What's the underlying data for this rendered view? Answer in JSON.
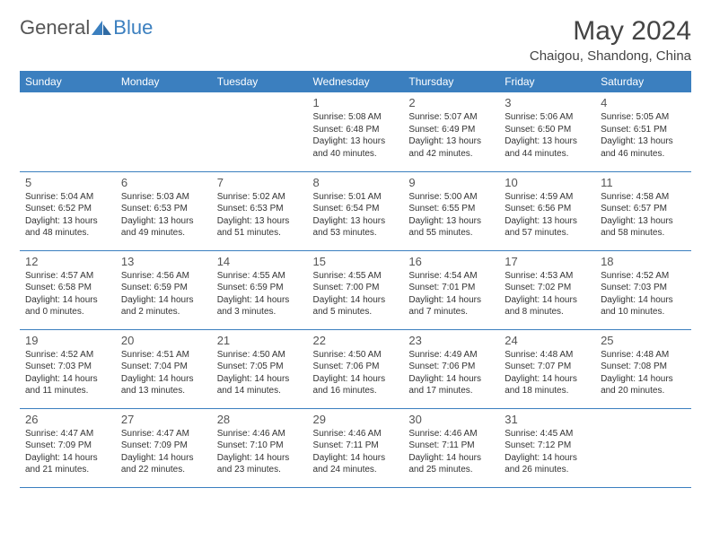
{
  "logo": {
    "text1": "General",
    "text2": "Blue"
  },
  "title": "May 2024",
  "location": "Chaigou, Shandong, China",
  "colors": {
    "header_bg": "#3b7fbf",
    "header_fg": "#ffffff",
    "border": "#3b7fbf",
    "text": "#333333"
  },
  "weekdays": [
    "Sunday",
    "Monday",
    "Tuesday",
    "Wednesday",
    "Thursday",
    "Friday",
    "Saturday"
  ],
  "weeks": [
    [
      {
        "n": "",
        "sr": "",
        "ss": "",
        "dl": ""
      },
      {
        "n": "",
        "sr": "",
        "ss": "",
        "dl": ""
      },
      {
        "n": "",
        "sr": "",
        "ss": "",
        "dl": ""
      },
      {
        "n": "1",
        "sr": "Sunrise: 5:08 AM",
        "ss": "Sunset: 6:48 PM",
        "dl": "Daylight: 13 hours and 40 minutes."
      },
      {
        "n": "2",
        "sr": "Sunrise: 5:07 AM",
        "ss": "Sunset: 6:49 PM",
        "dl": "Daylight: 13 hours and 42 minutes."
      },
      {
        "n": "3",
        "sr": "Sunrise: 5:06 AM",
        "ss": "Sunset: 6:50 PM",
        "dl": "Daylight: 13 hours and 44 minutes."
      },
      {
        "n": "4",
        "sr": "Sunrise: 5:05 AM",
        "ss": "Sunset: 6:51 PM",
        "dl": "Daylight: 13 hours and 46 minutes."
      }
    ],
    [
      {
        "n": "5",
        "sr": "Sunrise: 5:04 AM",
        "ss": "Sunset: 6:52 PM",
        "dl": "Daylight: 13 hours and 48 minutes."
      },
      {
        "n": "6",
        "sr": "Sunrise: 5:03 AM",
        "ss": "Sunset: 6:53 PM",
        "dl": "Daylight: 13 hours and 49 minutes."
      },
      {
        "n": "7",
        "sr": "Sunrise: 5:02 AM",
        "ss": "Sunset: 6:53 PM",
        "dl": "Daylight: 13 hours and 51 minutes."
      },
      {
        "n": "8",
        "sr": "Sunrise: 5:01 AM",
        "ss": "Sunset: 6:54 PM",
        "dl": "Daylight: 13 hours and 53 minutes."
      },
      {
        "n": "9",
        "sr": "Sunrise: 5:00 AM",
        "ss": "Sunset: 6:55 PM",
        "dl": "Daylight: 13 hours and 55 minutes."
      },
      {
        "n": "10",
        "sr": "Sunrise: 4:59 AM",
        "ss": "Sunset: 6:56 PM",
        "dl": "Daylight: 13 hours and 57 minutes."
      },
      {
        "n": "11",
        "sr": "Sunrise: 4:58 AM",
        "ss": "Sunset: 6:57 PM",
        "dl": "Daylight: 13 hours and 58 minutes."
      }
    ],
    [
      {
        "n": "12",
        "sr": "Sunrise: 4:57 AM",
        "ss": "Sunset: 6:58 PM",
        "dl": "Daylight: 14 hours and 0 minutes."
      },
      {
        "n": "13",
        "sr": "Sunrise: 4:56 AM",
        "ss": "Sunset: 6:59 PM",
        "dl": "Daylight: 14 hours and 2 minutes."
      },
      {
        "n": "14",
        "sr": "Sunrise: 4:55 AM",
        "ss": "Sunset: 6:59 PM",
        "dl": "Daylight: 14 hours and 3 minutes."
      },
      {
        "n": "15",
        "sr": "Sunrise: 4:55 AM",
        "ss": "Sunset: 7:00 PM",
        "dl": "Daylight: 14 hours and 5 minutes."
      },
      {
        "n": "16",
        "sr": "Sunrise: 4:54 AM",
        "ss": "Sunset: 7:01 PM",
        "dl": "Daylight: 14 hours and 7 minutes."
      },
      {
        "n": "17",
        "sr": "Sunrise: 4:53 AM",
        "ss": "Sunset: 7:02 PM",
        "dl": "Daylight: 14 hours and 8 minutes."
      },
      {
        "n": "18",
        "sr": "Sunrise: 4:52 AM",
        "ss": "Sunset: 7:03 PM",
        "dl": "Daylight: 14 hours and 10 minutes."
      }
    ],
    [
      {
        "n": "19",
        "sr": "Sunrise: 4:52 AM",
        "ss": "Sunset: 7:03 PM",
        "dl": "Daylight: 14 hours and 11 minutes."
      },
      {
        "n": "20",
        "sr": "Sunrise: 4:51 AM",
        "ss": "Sunset: 7:04 PM",
        "dl": "Daylight: 14 hours and 13 minutes."
      },
      {
        "n": "21",
        "sr": "Sunrise: 4:50 AM",
        "ss": "Sunset: 7:05 PM",
        "dl": "Daylight: 14 hours and 14 minutes."
      },
      {
        "n": "22",
        "sr": "Sunrise: 4:50 AM",
        "ss": "Sunset: 7:06 PM",
        "dl": "Daylight: 14 hours and 16 minutes."
      },
      {
        "n": "23",
        "sr": "Sunrise: 4:49 AM",
        "ss": "Sunset: 7:06 PM",
        "dl": "Daylight: 14 hours and 17 minutes."
      },
      {
        "n": "24",
        "sr": "Sunrise: 4:48 AM",
        "ss": "Sunset: 7:07 PM",
        "dl": "Daylight: 14 hours and 18 minutes."
      },
      {
        "n": "25",
        "sr": "Sunrise: 4:48 AM",
        "ss": "Sunset: 7:08 PM",
        "dl": "Daylight: 14 hours and 20 minutes."
      }
    ],
    [
      {
        "n": "26",
        "sr": "Sunrise: 4:47 AM",
        "ss": "Sunset: 7:09 PM",
        "dl": "Daylight: 14 hours and 21 minutes."
      },
      {
        "n": "27",
        "sr": "Sunrise: 4:47 AM",
        "ss": "Sunset: 7:09 PM",
        "dl": "Daylight: 14 hours and 22 minutes."
      },
      {
        "n": "28",
        "sr": "Sunrise: 4:46 AM",
        "ss": "Sunset: 7:10 PM",
        "dl": "Daylight: 14 hours and 23 minutes."
      },
      {
        "n": "29",
        "sr": "Sunrise: 4:46 AM",
        "ss": "Sunset: 7:11 PM",
        "dl": "Daylight: 14 hours and 24 minutes."
      },
      {
        "n": "30",
        "sr": "Sunrise: 4:46 AM",
        "ss": "Sunset: 7:11 PM",
        "dl": "Daylight: 14 hours and 25 minutes."
      },
      {
        "n": "31",
        "sr": "Sunrise: 4:45 AM",
        "ss": "Sunset: 7:12 PM",
        "dl": "Daylight: 14 hours and 26 minutes."
      },
      {
        "n": "",
        "sr": "",
        "ss": "",
        "dl": ""
      }
    ]
  ]
}
